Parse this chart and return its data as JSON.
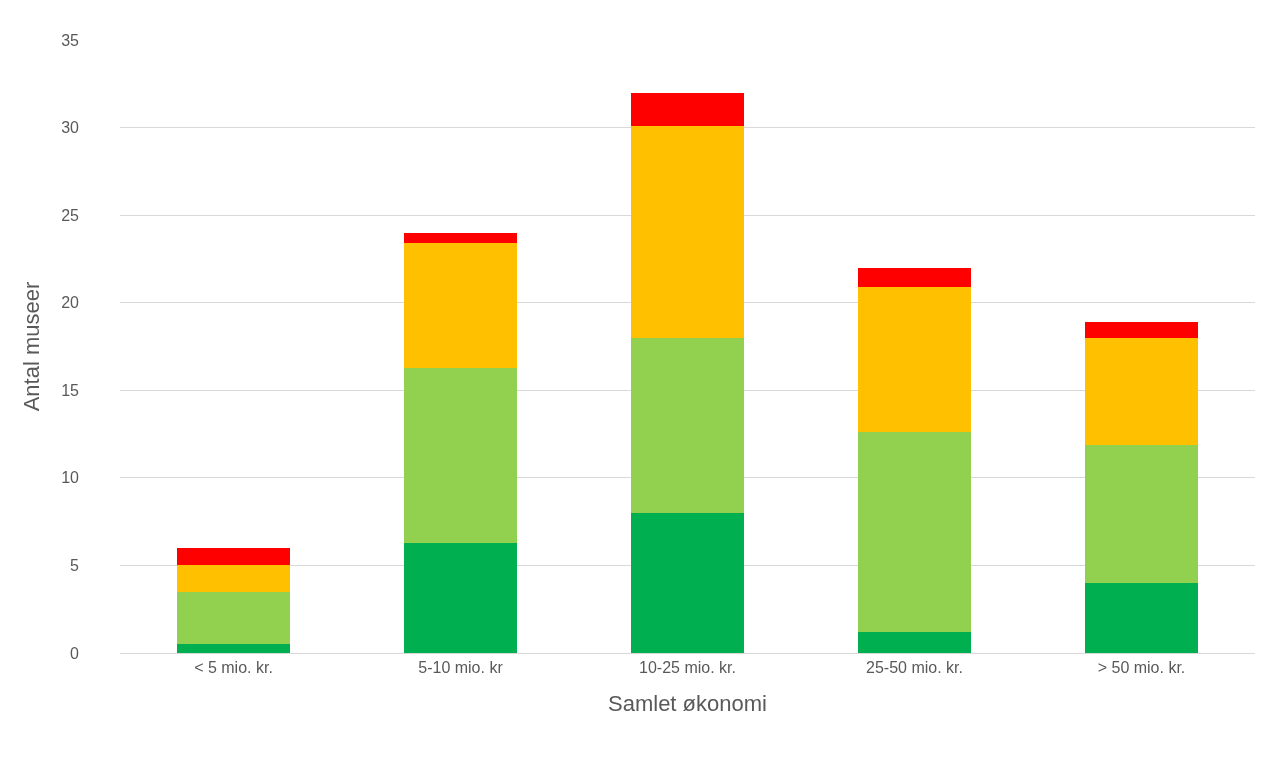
{
  "chart_data": {
    "type": "bar",
    "stacked": true,
    "xlabel": "Samlet økonomi",
    "ylabel": "Antal museer",
    "categories": [
      "< 5 mio. kr.",
      "5-10 mio. kr",
      "10-25 mio. kr.",
      "25-50 mio. kr.",
      "> 50 mio. kr."
    ],
    "series": [
      {
        "color": "#00b050",
        "values": [
          0.5,
          6.3,
          8.0,
          1.2,
          4.0
        ]
      },
      {
        "color": "#92d050",
        "values": [
          3.0,
          10.0,
          10.0,
          11.4,
          7.9
        ]
      },
      {
        "color": "#ffc000",
        "values": [
          1.5,
          7.1,
          12.1,
          8.3,
          6.1
        ]
      },
      {
        "color": "#ff0000",
        "values": [
          1.0,
          0.6,
          1.9,
          1.1,
          0.9
        ]
      }
    ],
    "ylim": [
      0,
      35
    ],
    "yticks": [
      0,
      5,
      10,
      15,
      20,
      25,
      30,
      35
    ],
    "grid": "y"
  }
}
